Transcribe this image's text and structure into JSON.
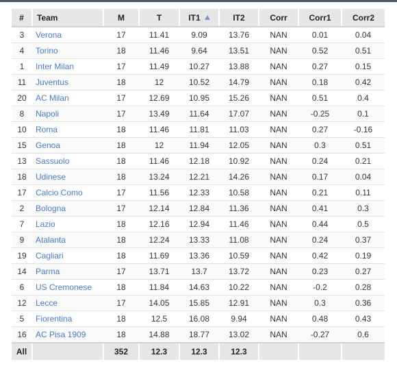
{
  "columns": [
    {
      "key": "num",
      "label": "#"
    },
    {
      "key": "team",
      "label": "Team"
    },
    {
      "key": "m",
      "label": "M"
    },
    {
      "key": "t",
      "label": "T"
    },
    {
      "key": "it1",
      "label": "IT1",
      "sorted": "asc"
    },
    {
      "key": "it2",
      "label": "IT2"
    },
    {
      "key": "corr",
      "label": "Corr"
    },
    {
      "key": "corr1",
      "label": "Corr1"
    },
    {
      "key": "corr2",
      "label": "Corr2"
    }
  ],
  "rows": [
    {
      "num": "3",
      "team": "Verona",
      "m": "17",
      "t": "11.41",
      "it1": "9.09",
      "it2": "13.76",
      "corr": "NAN",
      "corr1": "0.01",
      "corr2": "0.04"
    },
    {
      "num": "4",
      "team": "Torino",
      "m": "18",
      "t": "11.46",
      "it1": "9.64",
      "it2": "13.51",
      "corr": "NAN",
      "corr1": "0.52",
      "corr2": "0.51"
    },
    {
      "num": "1",
      "team": "Inter Milan",
      "m": "17",
      "t": "11.49",
      "it1": "10.27",
      "it2": "13.88",
      "corr": "NAN",
      "corr1": "0.27",
      "corr2": "0.15"
    },
    {
      "num": "11",
      "team": "Juventus",
      "m": "18",
      "t": "12",
      "it1": "10.52",
      "it2": "14.79",
      "corr": "NAN",
      "corr1": "0.18",
      "corr2": "0.42"
    },
    {
      "num": "20",
      "team": "AC Milan",
      "m": "17",
      "t": "12.69",
      "it1": "10.95",
      "it2": "15.26",
      "corr": "NAN",
      "corr1": "0.51",
      "corr2": "0.4"
    },
    {
      "num": "8",
      "team": "Napoli",
      "m": "17",
      "t": "13.49",
      "it1": "11.64",
      "it2": "17.07",
      "corr": "NAN",
      "corr1": "-0.25",
      "corr2": "0.1"
    },
    {
      "num": "10",
      "team": "Roma",
      "m": "18",
      "t": "11.46",
      "it1": "11.81",
      "it2": "11.03",
      "corr": "NAN",
      "corr1": "0.27",
      "corr2": "-0.16"
    },
    {
      "num": "15",
      "team": "Genoa",
      "m": "18",
      "t": "12",
      "it1": "11.94",
      "it2": "12.05",
      "corr": "NAN",
      "corr1": "0.3",
      "corr2": "0.51"
    },
    {
      "num": "13",
      "team": "Sassuolo",
      "m": "18",
      "t": "11.46",
      "it1": "12.18",
      "it2": "10.92",
      "corr": "NAN",
      "corr1": "0.24",
      "corr2": "0.21"
    },
    {
      "num": "18",
      "team": "Udinese",
      "m": "18",
      "t": "13.24",
      "it1": "12.21",
      "it2": "14.26",
      "corr": "NAN",
      "corr1": "0.17",
      "corr2": "0.04"
    },
    {
      "num": "17",
      "team": "Calcio Como",
      "m": "17",
      "t": "11.56",
      "it1": "12.33",
      "it2": "10.58",
      "corr": "NAN",
      "corr1": "0.21",
      "corr2": "0.11"
    },
    {
      "num": "2",
      "team": "Bologna",
      "m": "17",
      "t": "12.14",
      "it1": "12.84",
      "it2": "11.36",
      "corr": "NAN",
      "corr1": "0.41",
      "corr2": "0.3"
    },
    {
      "num": "7",
      "team": "Lazio",
      "m": "18",
      "t": "12.16",
      "it1": "12.94",
      "it2": "11.46",
      "corr": "NAN",
      "corr1": "0.44",
      "corr2": "0.5"
    },
    {
      "num": "9",
      "team": "Atalanta",
      "m": "18",
      "t": "12.24",
      "it1": "13.33",
      "it2": "11.08",
      "corr": "NAN",
      "corr1": "0.24",
      "corr2": "0.37"
    },
    {
      "num": "19",
      "team": "Cagliari",
      "m": "18",
      "t": "11.69",
      "it1": "13.36",
      "it2": "10.59",
      "corr": "NAN",
      "corr1": "0.42",
      "corr2": "0.19"
    },
    {
      "num": "14",
      "team": "Parma",
      "m": "17",
      "t": "13.71",
      "it1": "13.7",
      "it2": "13.72",
      "corr": "NAN",
      "corr1": "0.23",
      "corr2": "0.27"
    },
    {
      "num": "6",
      "team": "US Cremonese",
      "m": "18",
      "t": "11.84",
      "it1": "14.63",
      "it2": "10.22",
      "corr": "NAN",
      "corr1": "-0.2",
      "corr2": "0.28"
    },
    {
      "num": "12",
      "team": "Lecce",
      "m": "17",
      "t": "14.05",
      "it1": "15.85",
      "it2": "12.91",
      "corr": "NAN",
      "corr1": "0.3",
      "corr2": "0.36"
    },
    {
      "num": "5",
      "team": "Fiorentina",
      "m": "18",
      "t": "12.5",
      "it1": "16.08",
      "it2": "9.94",
      "corr": "NAN",
      "corr1": "0.48",
      "corr2": "0.43"
    },
    {
      "num": "16",
      "team": "AC Pisa 1909",
      "m": "18",
      "t": "14.88",
      "it1": "18.77",
      "it2": "13.02",
      "corr": "NAN",
      "corr1": "-0.27",
      "corr2": "0.6"
    }
  ],
  "footer": {
    "num": "All",
    "team": "",
    "m": "352",
    "t": "12.3",
    "it1": "12.3",
    "it2": "12.3",
    "corr": "",
    "corr1": "",
    "corr2": ""
  },
  "colors": {
    "link": "#4a78c8",
    "header_bg": "#e6e6e6",
    "sort_icon": "#7f93c9"
  },
  "icons": {
    "sort": "sort-ascending-icon"
  }
}
